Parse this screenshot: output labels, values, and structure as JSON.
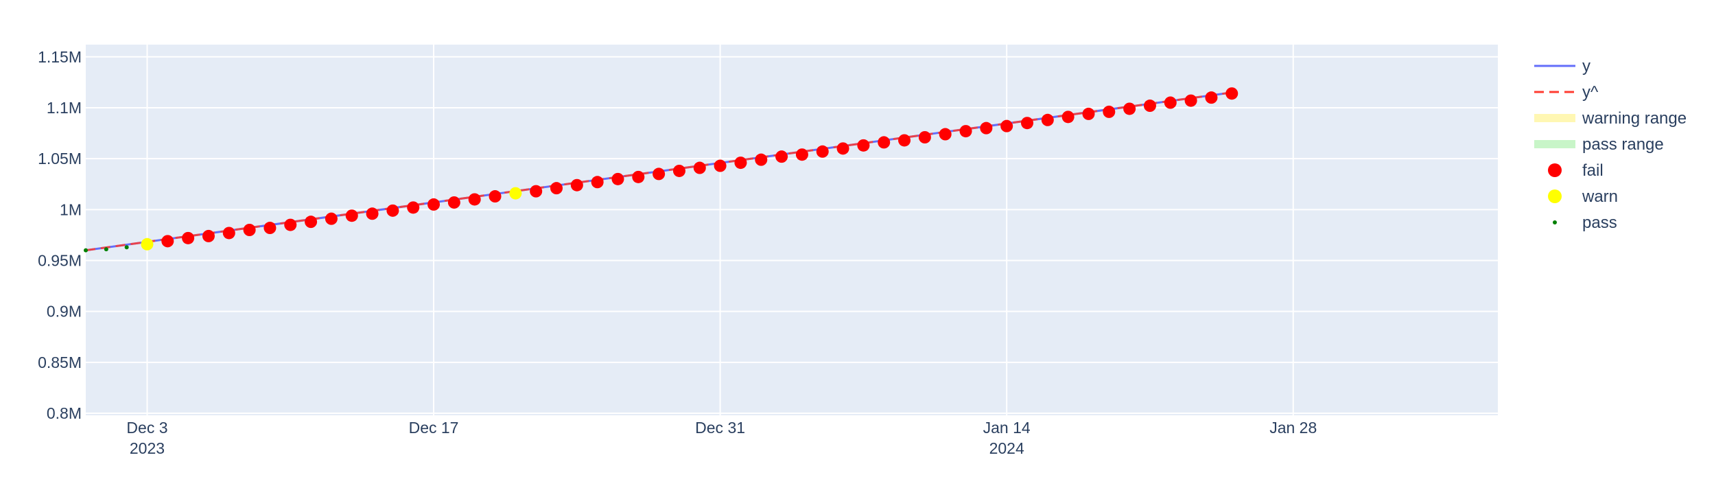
{
  "chart_data": {
    "type": "line",
    "title": "",
    "xlabel": "",
    "ylabel": "",
    "x_axis": {
      "type": "date",
      "range": [
        "2023-11-30",
        "2024-02-07"
      ],
      "ticks": [
        {
          "date": "2023-12-03",
          "label": "Dec 3",
          "sublabel": "2023"
        },
        {
          "date": "2023-12-17",
          "label": "Dec 17",
          "sublabel": ""
        },
        {
          "date": "2023-12-31",
          "label": "Dec 31",
          "sublabel": ""
        },
        {
          "date": "2024-01-14",
          "label": "Jan 14",
          "sublabel": "2024"
        },
        {
          "date": "2024-01-28",
          "label": "Jan 28",
          "sublabel": ""
        }
      ]
    },
    "y_axis": {
      "range": [
        798000,
        1162000
      ],
      "ticks": [
        {
          "value": 800000,
          "label": "0.8M"
        },
        {
          "value": 850000,
          "label": "0.85M"
        },
        {
          "value": 900000,
          "label": "0.9M"
        },
        {
          "value": 950000,
          "label": "0.95M"
        },
        {
          "value": 1000000,
          "label": "1M"
        },
        {
          "value": 1050000,
          "label": "1.05M"
        },
        {
          "value": 1100000,
          "label": "1.1M"
        },
        {
          "value": 1150000,
          "label": "1.15M"
        }
      ]
    },
    "grid": true,
    "legend_position": "right",
    "line": {
      "start_date": "2023-11-30",
      "start_value": 960000,
      "end_date": "2024-01-25",
      "end_value": 1115000
    },
    "series": [
      {
        "name": "y",
        "style": "line",
        "color": "#636efa"
      },
      {
        "name": "y^",
        "style": "dash",
        "color": "#ff3b30"
      },
      {
        "name": "warning range",
        "style": "band",
        "color": "#fff7b3"
      },
      {
        "name": "pass range",
        "style": "band",
        "color": "#c8f5c8"
      },
      {
        "name": "fail",
        "style": "marker",
        "color": "#ff0000"
      },
      {
        "name": "warn",
        "style": "marker",
        "color": "#ffff00"
      },
      {
        "name": "pass",
        "style": "small-marker",
        "color": "#008000"
      }
    ],
    "points": [
      {
        "x": "2023-11-30",
        "y": 960000,
        "status": "pass"
      },
      {
        "x": "2023-12-01",
        "y": 961000,
        "status": "pass"
      },
      {
        "x": "2023-12-02",
        "y": 963000,
        "status": "pass"
      },
      {
        "x": "2023-12-03",
        "y": 966000,
        "status": "warn"
      },
      {
        "x": "2023-12-04",
        "y": 969000,
        "status": "fail"
      },
      {
        "x": "2023-12-05",
        "y": 972000,
        "status": "fail"
      },
      {
        "x": "2023-12-06",
        "y": 974000,
        "status": "fail"
      },
      {
        "x": "2023-12-07",
        "y": 977000,
        "status": "fail"
      },
      {
        "x": "2023-12-08",
        "y": 980000,
        "status": "fail"
      },
      {
        "x": "2023-12-09",
        "y": 982000,
        "status": "fail"
      },
      {
        "x": "2023-12-10",
        "y": 985000,
        "status": "fail"
      },
      {
        "x": "2023-12-11",
        "y": 988000,
        "status": "fail"
      },
      {
        "x": "2023-12-12",
        "y": 991000,
        "status": "fail"
      },
      {
        "x": "2023-12-13",
        "y": 994000,
        "status": "fail"
      },
      {
        "x": "2023-12-14",
        "y": 996000,
        "status": "fail"
      },
      {
        "x": "2023-12-15",
        "y": 999000,
        "status": "fail"
      },
      {
        "x": "2023-12-16",
        "y": 1002000,
        "status": "fail"
      },
      {
        "x": "2023-12-17",
        "y": 1005000,
        "status": "fail"
      },
      {
        "x": "2023-12-18",
        "y": 1007000,
        "status": "fail"
      },
      {
        "x": "2023-12-19",
        "y": 1010000,
        "status": "fail"
      },
      {
        "x": "2023-12-20",
        "y": 1013000,
        "status": "fail"
      },
      {
        "x": "2023-12-21",
        "y": 1016000,
        "status": "warn"
      },
      {
        "x": "2023-12-22",
        "y": 1018000,
        "status": "fail"
      },
      {
        "x": "2023-12-23",
        "y": 1021000,
        "status": "fail"
      },
      {
        "x": "2023-12-24",
        "y": 1024000,
        "status": "fail"
      },
      {
        "x": "2023-12-25",
        "y": 1027000,
        "status": "fail"
      },
      {
        "x": "2023-12-26",
        "y": 1030000,
        "status": "fail"
      },
      {
        "x": "2023-12-27",
        "y": 1032000,
        "status": "fail"
      },
      {
        "x": "2023-12-28",
        "y": 1035000,
        "status": "fail"
      },
      {
        "x": "2023-12-29",
        "y": 1038000,
        "status": "fail"
      },
      {
        "x": "2023-12-30",
        "y": 1041000,
        "status": "fail"
      },
      {
        "x": "2023-12-31",
        "y": 1043000,
        "status": "fail"
      },
      {
        "x": "2024-01-01",
        "y": 1046000,
        "status": "fail"
      },
      {
        "x": "2024-01-02",
        "y": 1049000,
        "status": "fail"
      },
      {
        "x": "2024-01-03",
        "y": 1052000,
        "status": "fail"
      },
      {
        "x": "2024-01-04",
        "y": 1054000,
        "status": "fail"
      },
      {
        "x": "2024-01-05",
        "y": 1057000,
        "status": "fail"
      },
      {
        "x": "2024-01-06",
        "y": 1060000,
        "status": "fail"
      },
      {
        "x": "2024-01-07",
        "y": 1063000,
        "status": "fail"
      },
      {
        "x": "2024-01-08",
        "y": 1066000,
        "status": "fail"
      },
      {
        "x": "2024-01-09",
        "y": 1068000,
        "status": "fail"
      },
      {
        "x": "2024-01-10",
        "y": 1071000,
        "status": "fail"
      },
      {
        "x": "2024-01-11",
        "y": 1074000,
        "status": "fail"
      },
      {
        "x": "2024-01-12",
        "y": 1077000,
        "status": "fail"
      },
      {
        "x": "2024-01-13",
        "y": 1080000,
        "status": "fail"
      },
      {
        "x": "2024-01-14",
        "y": 1082000,
        "status": "fail"
      },
      {
        "x": "2024-01-15",
        "y": 1085000,
        "status": "fail"
      },
      {
        "x": "2024-01-16",
        "y": 1088000,
        "status": "fail"
      },
      {
        "x": "2024-01-17",
        "y": 1091000,
        "status": "fail"
      },
      {
        "x": "2024-01-18",
        "y": 1094000,
        "status": "fail"
      },
      {
        "x": "2024-01-19",
        "y": 1096000,
        "status": "fail"
      },
      {
        "x": "2024-01-20",
        "y": 1099000,
        "status": "fail"
      },
      {
        "x": "2024-01-21",
        "y": 1102000,
        "status": "fail"
      },
      {
        "x": "2024-01-22",
        "y": 1105000,
        "status": "fail"
      },
      {
        "x": "2024-01-23",
        "y": 1107000,
        "status": "fail"
      },
      {
        "x": "2024-01-24",
        "y": 1110000,
        "status": "fail"
      },
      {
        "x": "2024-01-25",
        "y": 1114000,
        "status": "fail"
      }
    ]
  }
}
